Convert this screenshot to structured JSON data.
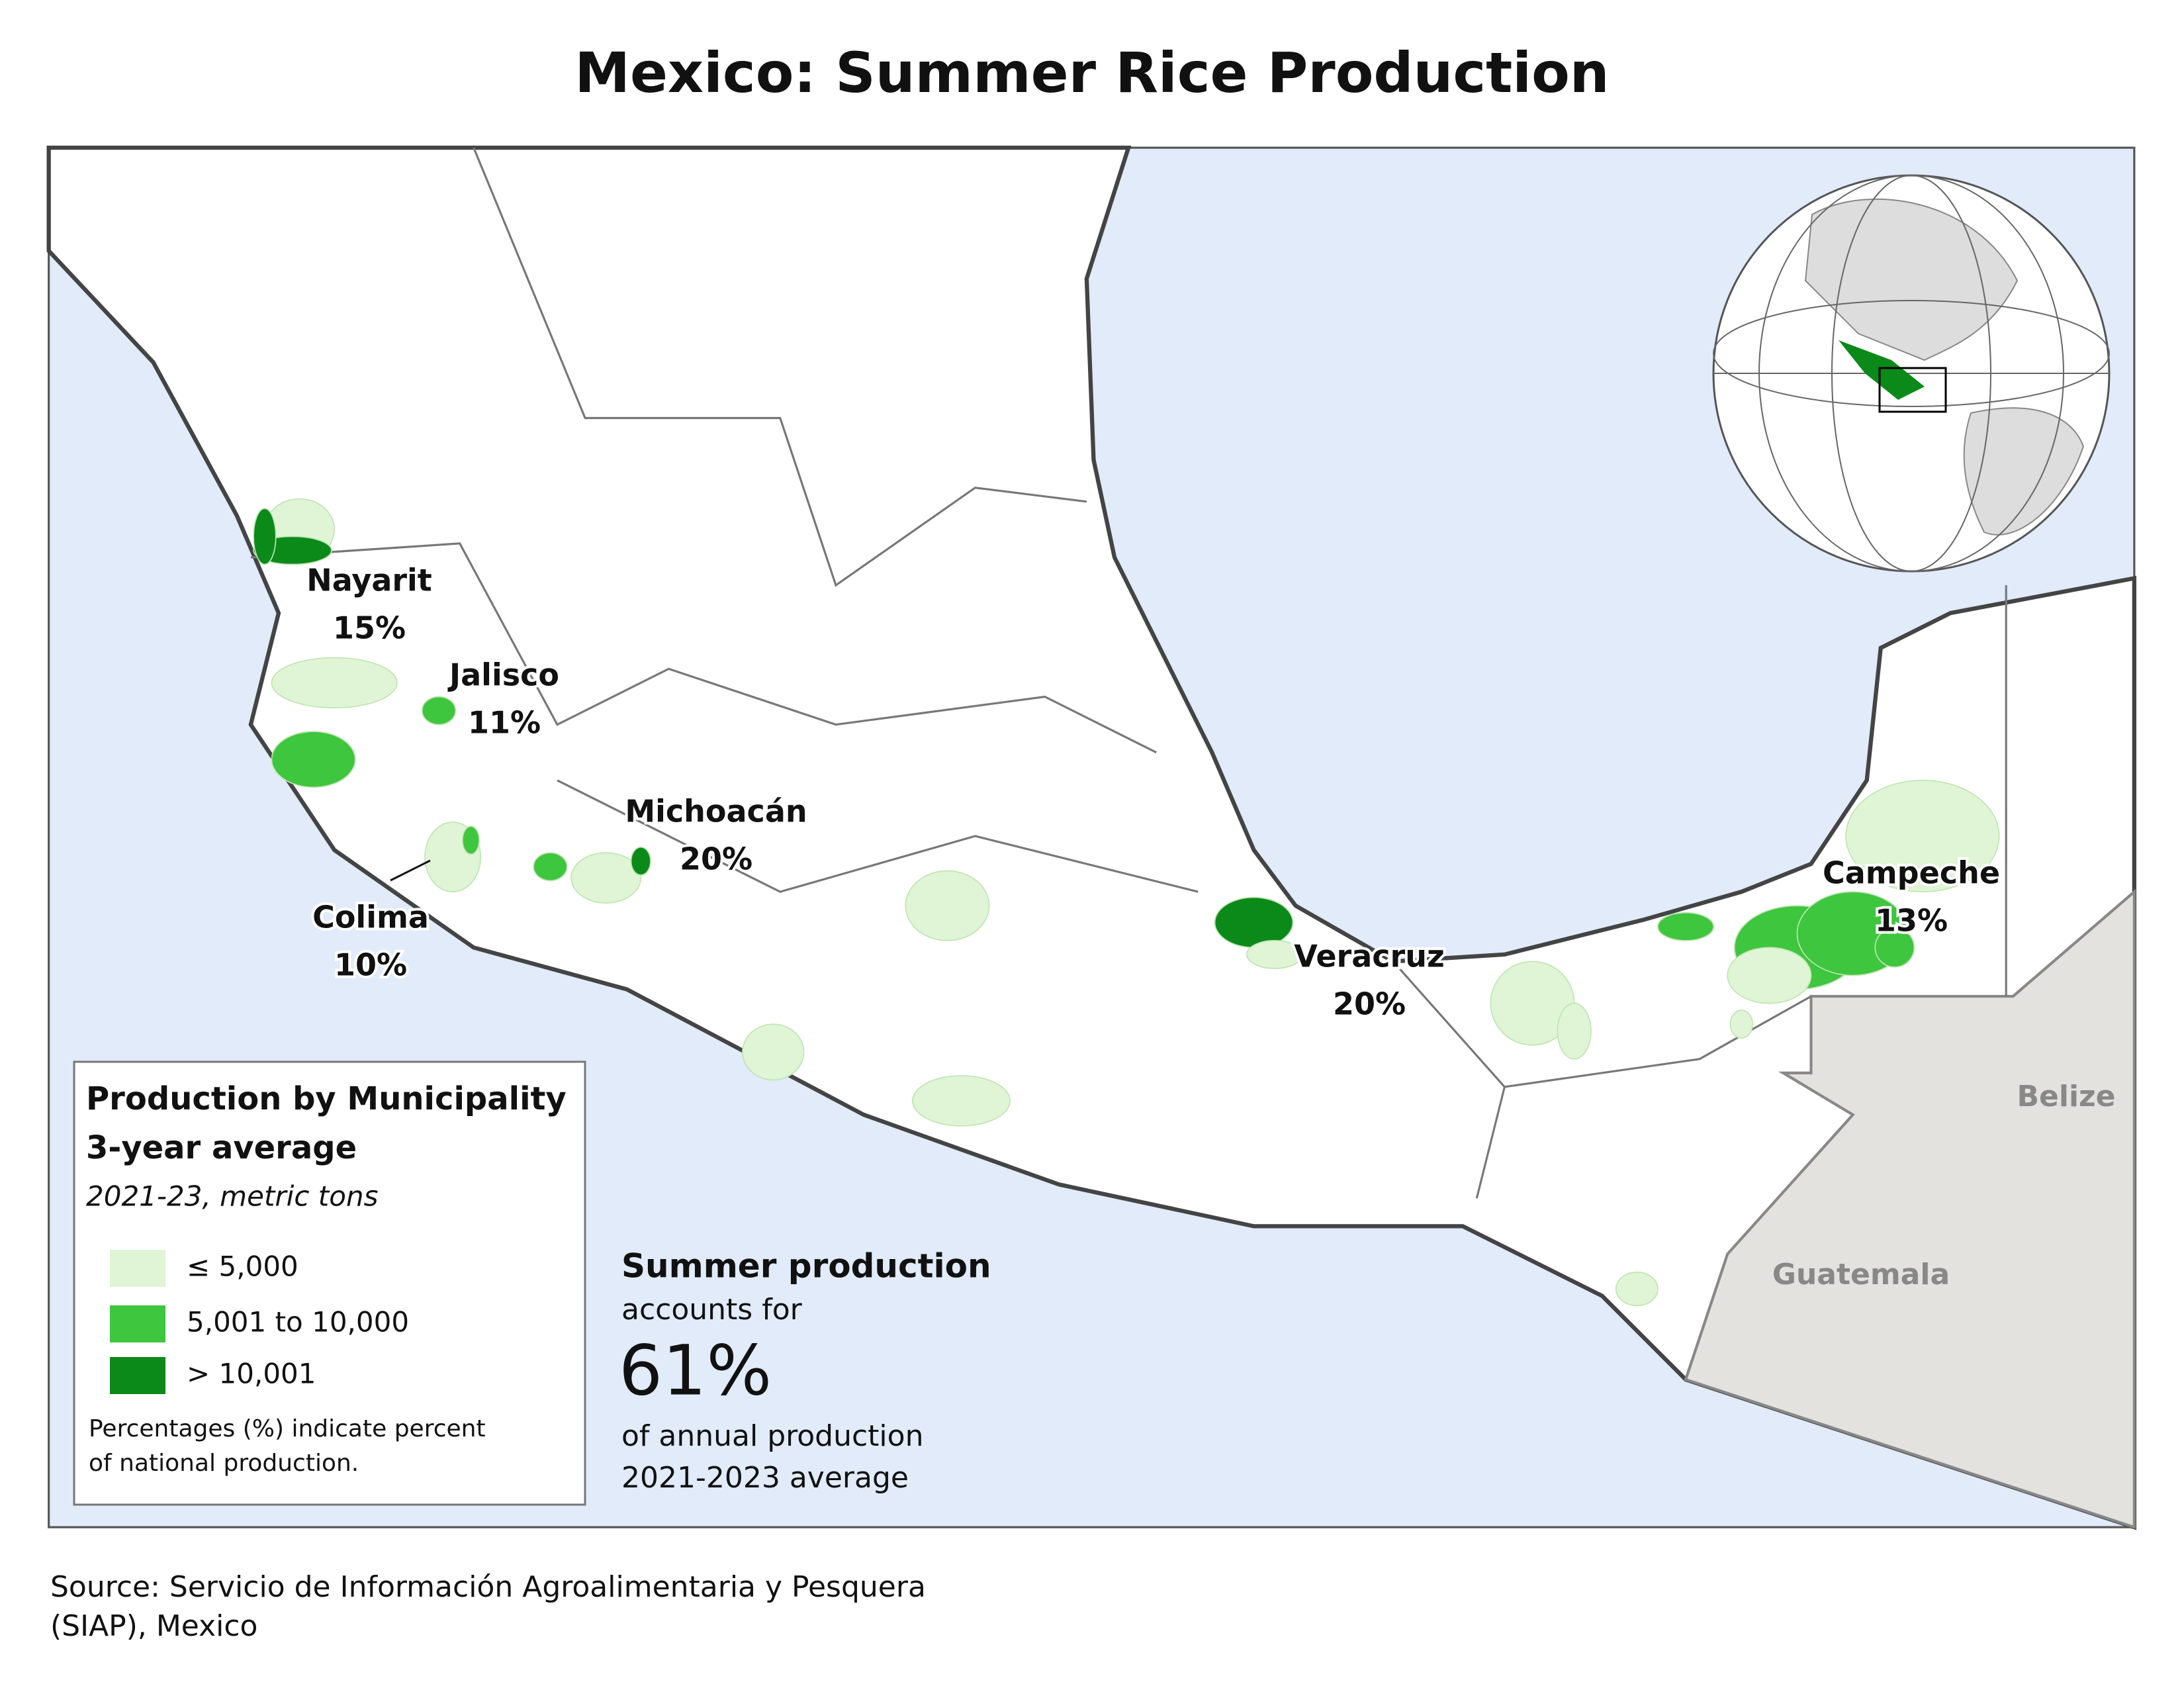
{
  "title": "Mexico: Summer Rice Production",
  "legend": {
    "title": [
      "Production by Municipality",
      "3-year average"
    ],
    "subtitle": "2021-23, metric tons",
    "items": [
      {
        "label": "≤ 5,000",
        "color": "#dff5d5"
      },
      {
        "label": "5,001 to 10,000",
        "color": "#3ec63e"
      },
      {
        "label": "> 10,001",
        "color": "#0b8a1a"
      }
    ],
    "note": [
      "Percentages (%) indicate percent",
      "of national production."
    ]
  },
  "regions": [
    {
      "name": "Nayarit",
      "share": "15%"
    },
    {
      "name": "Jalisco",
      "share": "11%"
    },
    {
      "name": "Michoacán",
      "share": "20%"
    },
    {
      "name": "Colima",
      "share": "10%"
    },
    {
      "name": "Veracruz",
      "share": "20%"
    },
    {
      "name": "Campeche",
      "share": "13%"
    }
  ],
  "countries": [
    "Belize",
    "Guatemala"
  ],
  "summary": {
    "heading": "Summer production",
    "lead": "accounts for",
    "figure": "61%",
    "lines": [
      "of annual production",
      "2021-2023 average"
    ]
  },
  "source": [
    "Source: Servicio de Información Agroalimentaria y Pesquera",
    "(SIAP), Mexico"
  ]
}
